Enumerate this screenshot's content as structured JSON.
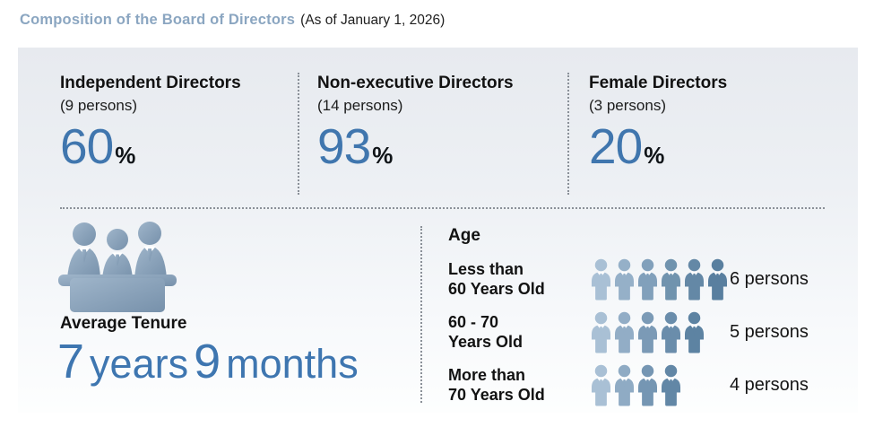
{
  "header": {
    "title": "Composition of the Board of Directors",
    "subtitle": "(As of January 1, 2026)"
  },
  "stats": [
    {
      "label": "Independent Directors",
      "sub": "(9 persons)",
      "value": "60",
      "unit": "%"
    },
    {
      "label": "Non-executive Directors",
      "sub": "(14 persons)",
      "value": "93",
      "unit": "%"
    },
    {
      "label": "Female Directors",
      "sub": "(3 persons)",
      "value": "20",
      "unit": "%"
    }
  ],
  "tenure": {
    "label": "Average Tenure",
    "num1": "7",
    "word1": "years",
    "num2": "9",
    "word2": "months"
  },
  "age": {
    "heading": "Age",
    "rows": [
      {
        "label_line1": "Less than",
        "label_line2": "60 Years Old",
        "count": 6,
        "persons_label": "6 persons",
        "icon_colors": [
          "#a9c0d5",
          "#95b0c8",
          "#81a0bb",
          "#7093ae",
          "#6488a6",
          "#597f9f"
        ]
      },
      {
        "label_line1": "60 - 70",
        "label_line2": "Years Old",
        "count": 5,
        "persons_label": "5 persons",
        "icon_colors": [
          "#a9c0d5",
          "#92adc6",
          "#7b9ab6",
          "#6a8dab",
          "#5d83a2"
        ]
      },
      {
        "label_line1": "More than",
        "label_line2": "70 Years Old",
        "count": 4,
        "persons_label": "4 persons",
        "icon_colors": [
          "#a9c0d5",
          "#8fabc4",
          "#7596b3",
          "#6287a6"
        ]
      }
    ]
  },
  "colors": {
    "title_blue": "#8ba6c1",
    "accent_blue": "#3e76b0",
    "stat_number_blue": "#4076ae",
    "icon_gradient_light": "#9fb5ca",
    "icon_gradient_dark": "#7791ab",
    "divider_gray": "#8a9098",
    "panel_top": "#e7eaef",
    "panel_bottom": "#fdfefe"
  },
  "chart_data": {
    "type": "table",
    "title": "Composition of the Board of Directors (As of January 1, 2026)",
    "stats": [
      {
        "label": "Independent Directors",
        "persons": 9,
        "percent": 60
      },
      {
        "label": "Non-executive Directors",
        "persons": 14,
        "percent": 93
      },
      {
        "label": "Female Directors",
        "persons": 3,
        "percent": 20
      }
    ],
    "average_tenure": {
      "years": 7,
      "months": 9
    },
    "age_distribution": {
      "categories": [
        "Less than 60 Years Old",
        "60 - 70 Years Old",
        "More than 70 Years Old"
      ],
      "values": [
        6,
        5,
        4
      ],
      "unit": "persons"
    }
  }
}
